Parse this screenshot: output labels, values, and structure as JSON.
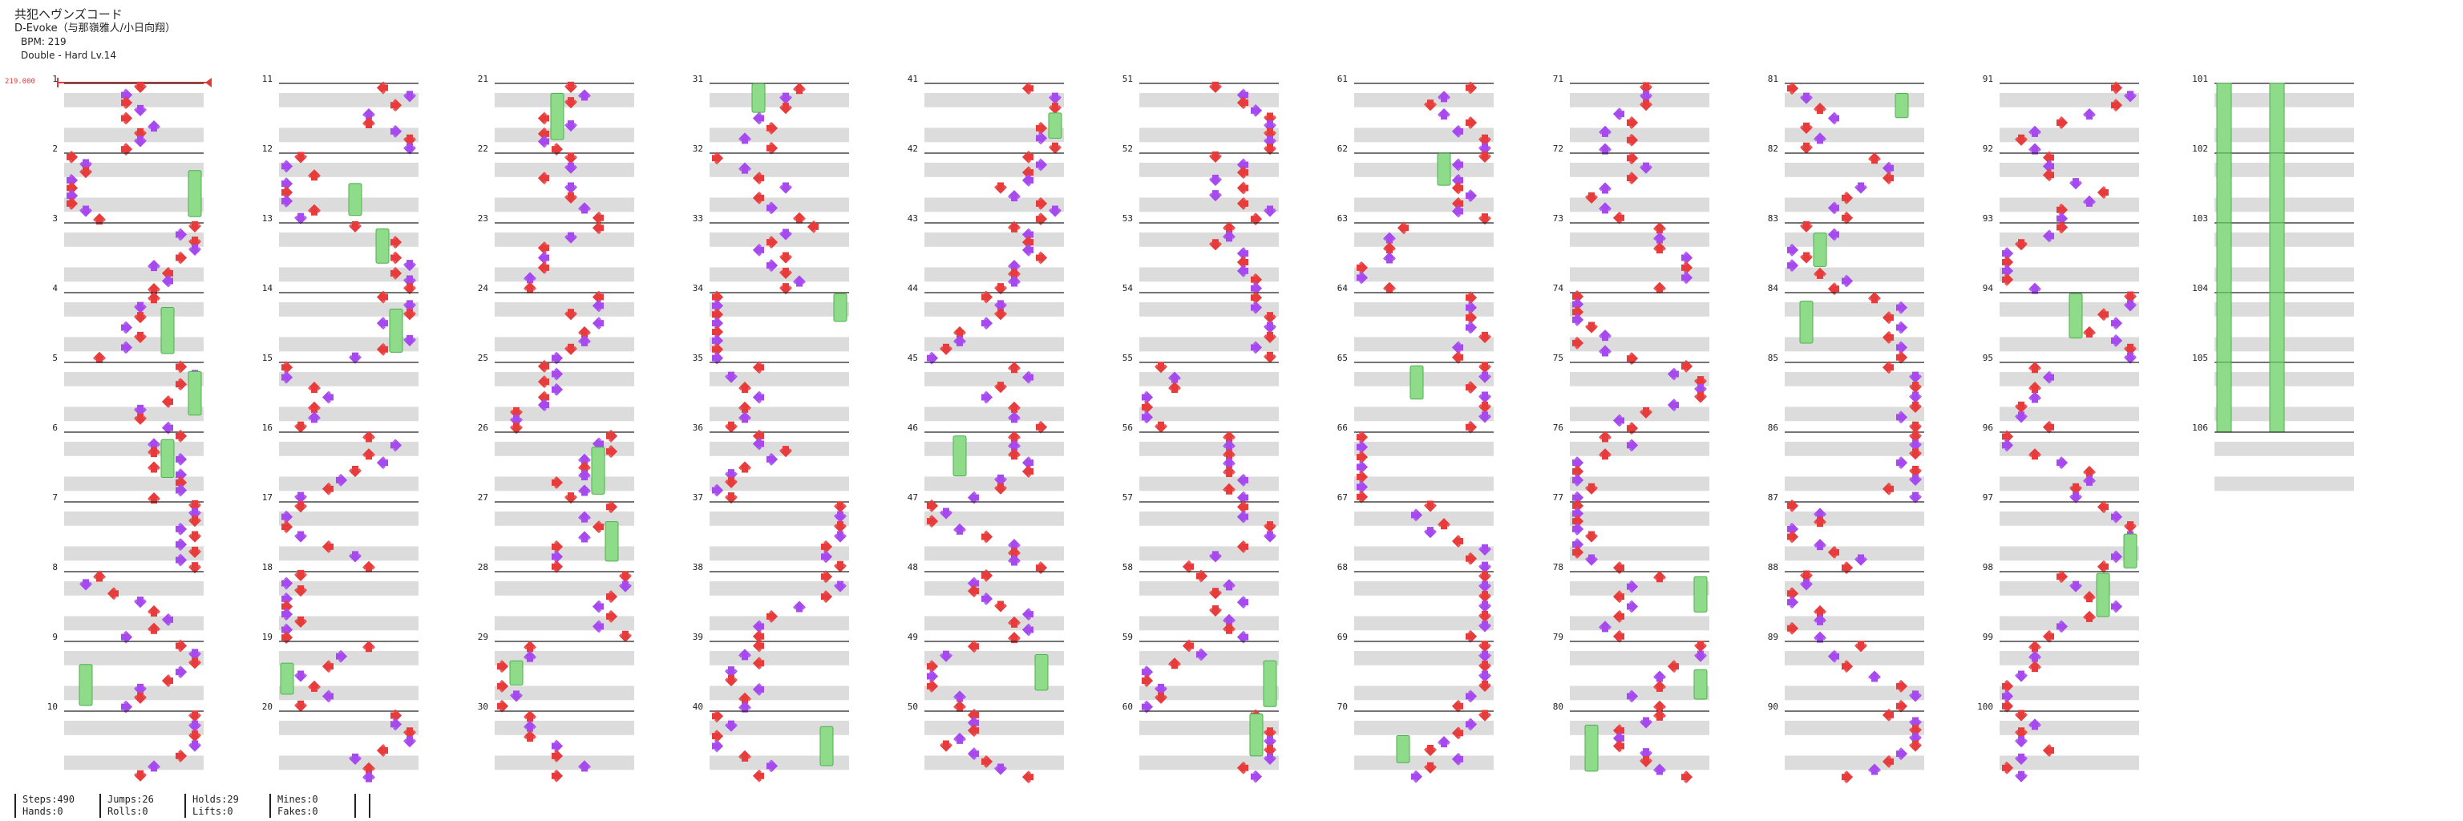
{
  "song": {
    "title": "共犯ヘヴンズコード",
    "artist": "D-Evoke（与那嶺雅人/小日向翔）",
    "bpm": "BPM: 219",
    "difficulty": "Double - Hard Lv.14"
  },
  "bpm_marker": "219.000",
  "measures": {
    "first": 1,
    "last": 106,
    "labels": [
      "1",
      "2",
      "3",
      "4",
      "5",
      "6",
      "7",
      "8",
      "9",
      "10",
      "11",
      "12",
      "13",
      "14",
      "15",
      "16",
      "17",
      "18",
      "19",
      "20",
      "21",
      "22",
      "23",
      "24",
      "25",
      "26",
      "27",
      "28",
      "29",
      "30",
      "31",
      "32",
      "33",
      "34",
      "35",
      "36",
      "37",
      "38",
      "39",
      "40",
      "41",
      "42",
      "43",
      "44",
      "45",
      "46",
      "47",
      "48",
      "49",
      "50",
      "51",
      "52",
      "53",
      "54",
      "55",
      "56",
      "57",
      "58",
      "59",
      "60",
      "61",
      "62",
      "63",
      "64",
      "65",
      "66",
      "67",
      "68",
      "69",
      "70",
      "71",
      "72",
      "73",
      "74",
      "75",
      "76",
      "77",
      "78",
      "79",
      "80",
      "81",
      "82",
      "83",
      "84",
      "85",
      "86",
      "87",
      "88",
      "89",
      "90",
      "91",
      "92",
      "93",
      "94",
      "95",
      "96",
      "97",
      "98",
      "99",
      "100",
      "101",
      "102",
      "103",
      "104",
      "105",
      "106"
    ]
  },
  "colors": {
    "quarter_arrow": "#e83c3c",
    "eighth_arrow": "#a64af0",
    "hold": "#8edc8a",
    "hold_edge": "#4fae4f",
    "beat_band": "#dcdcdc",
    "measure_line": "#222222"
  },
  "stats": {
    "steps": "Steps:490",
    "hands": "Hands:0",
    "jumps": "Jumps:26",
    "rolls": "Rolls:0",
    "holds": "Holds:29",
    "lifts": "Lifts:0",
    "mines": "Mines:0",
    "fakes": "Fakes:0"
  }
}
